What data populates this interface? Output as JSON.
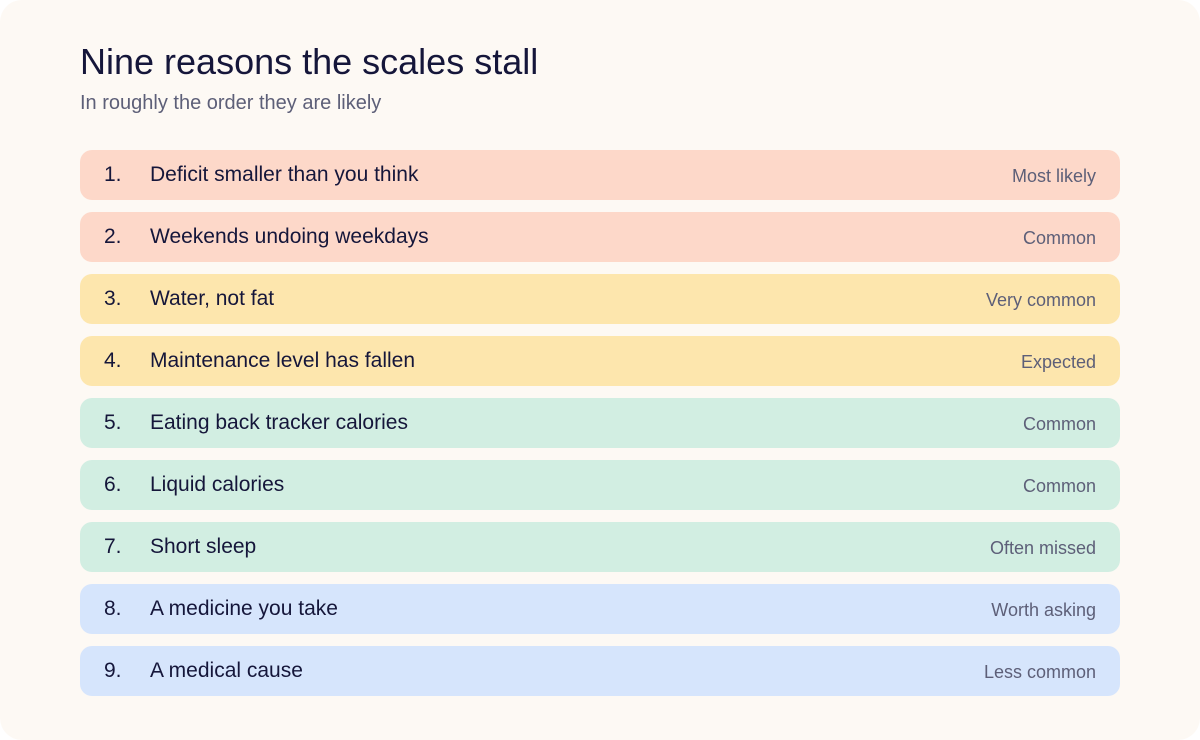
{
  "header": {
    "title": "Nine reasons the scales stall",
    "subtitle": "In roughly the order they are likely"
  },
  "colors": {
    "peach": "#fdd8c9",
    "yellow": "#fde6ad",
    "mint": "#d2eee2",
    "blue": "#d6e5fc"
  },
  "reasons": [
    {
      "number": "1.",
      "label": "Deficit smaller than you think",
      "likelihood": "Most likely",
      "color": "#fdd8c9"
    },
    {
      "number": "2.",
      "label": "Weekends undoing weekdays",
      "likelihood": "Common",
      "color": "#fdd8c9"
    },
    {
      "number": "3.",
      "label": "Water, not fat",
      "likelihood": "Very common",
      "color": "#fde6ad"
    },
    {
      "number": "4.",
      "label": "Maintenance level has fallen",
      "likelihood": "Expected",
      "color": "#fde6ad"
    },
    {
      "number": "5.",
      "label": "Eating back tracker calories",
      "likelihood": "Common",
      "color": "#d2eee2"
    },
    {
      "number": "6.",
      "label": "Liquid calories",
      "likelihood": "Common",
      "color": "#d2eee2"
    },
    {
      "number": "7.",
      "label": "Short sleep",
      "likelihood": "Often missed",
      "color": "#d2eee2"
    },
    {
      "number": "8.",
      "label": "A medicine you take",
      "likelihood": "Worth asking",
      "color": "#d6e5fc"
    },
    {
      "number": "9.",
      "label": "A medical cause",
      "likelihood": "Less common",
      "color": "#d6e5fc"
    }
  ]
}
